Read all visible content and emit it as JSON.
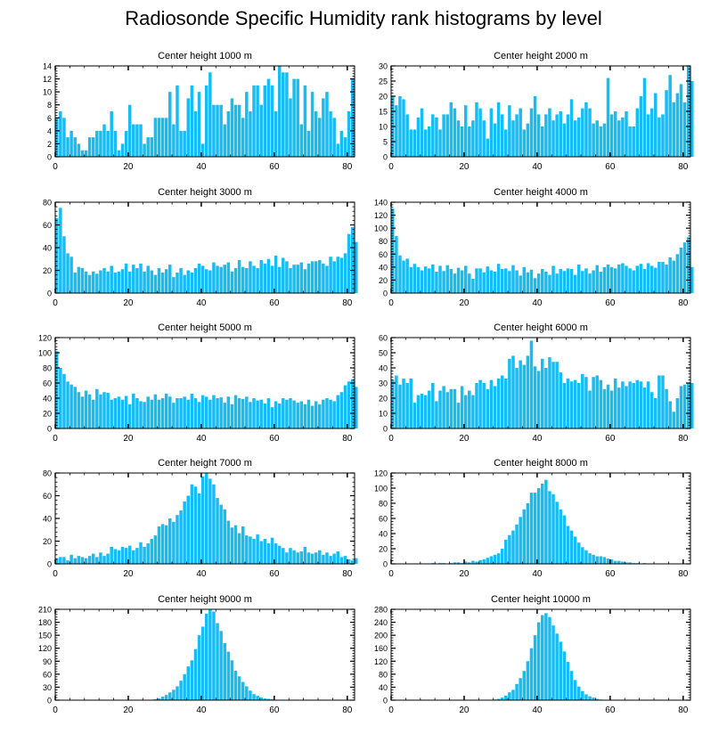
{
  "title": "Radiosonde Specific Humidity rank histograms by level",
  "colors": {
    "bar": "#17bdf2",
    "axis": "#000000",
    "background": "#ffffff"
  },
  "chart_data": [
    {
      "type": "bar",
      "title": "Center height 1000 m",
      "x_ticks": [
        0,
        20,
        40,
        60,
        80
      ],
      "ylim": [
        0,
        14
      ],
      "y_ticks": [
        0,
        2,
        4,
        6,
        8,
        10,
        12,
        14
      ],
      "values": [
        6,
        7,
        6,
        3,
        4,
        3,
        2,
        1,
        1,
        3,
        3,
        4,
        4,
        5,
        4,
        7,
        4,
        1,
        2,
        4,
        8,
        5,
        5,
        5,
        2,
        3,
        3,
        6,
        6,
        6,
        6,
        10,
        5,
        11,
        4,
        4,
        9,
        11,
        7,
        10,
        2,
        11,
        13,
        8,
        8,
        8,
        5,
        7,
        9,
        8,
        8,
        6,
        10,
        7,
        11,
        11,
        8,
        11,
        12,
        11,
        7,
        14,
        13,
        13,
        9,
        12,
        12,
        5,
        11,
        4,
        10,
        7,
        6,
        9,
        10,
        7,
        6,
        2,
        4,
        3,
        7,
        12
      ]
    },
    {
      "type": "bar",
      "title": "Center height 2000 m",
      "x_ticks": [
        0,
        20,
        40,
        60,
        80
      ],
      "ylim": [
        0,
        30
      ],
      "y_ticks": [
        0,
        5,
        10,
        15,
        20,
        25,
        30
      ],
      "values": [
        20,
        17,
        20,
        19,
        14,
        9,
        9,
        13,
        16,
        9,
        10,
        14,
        13,
        9,
        14,
        14,
        18,
        16,
        12,
        10,
        17,
        10,
        12,
        18,
        16,
        12,
        6,
        16,
        11,
        18,
        14,
        9,
        17,
        12,
        14,
        16,
        9,
        11,
        16,
        20,
        14,
        10,
        14,
        16,
        12,
        14,
        15,
        11,
        14,
        19,
        12,
        13,
        16,
        18,
        16,
        11,
        12,
        10,
        11,
        26,
        14,
        15,
        12,
        13,
        15,
        10,
        10,
        16,
        20,
        26,
        14,
        16,
        21,
        13,
        14,
        22,
        27,
        18,
        21,
        24,
        18,
        30,
        25
      ]
    },
    {
      "type": "bar",
      "title": "Center height 3000 m",
      "x_ticks": [
        0,
        20,
        40,
        60,
        80
      ],
      "ylim": [
        0,
        80
      ],
      "y_ticks": [
        0,
        20,
        40,
        60,
        80
      ],
      "values": [
        66,
        75,
        50,
        35,
        32,
        18,
        23,
        22,
        19,
        16,
        19,
        17,
        20,
        22,
        19,
        24,
        18,
        19,
        21,
        26,
        19,
        25,
        22,
        26,
        19,
        24,
        20,
        16,
        22,
        18,
        21,
        25,
        14,
        18,
        22,
        16,
        20,
        18,
        22,
        26,
        24,
        21,
        20,
        27,
        24,
        23,
        25,
        27,
        19,
        22,
        29,
        23,
        22,
        28,
        24,
        22,
        29,
        26,
        30,
        24,
        33,
        23,
        31,
        28,
        22,
        25,
        25,
        27,
        21,
        26,
        28,
        28,
        29,
        26,
        24,
        32,
        28,
        32,
        31,
        35,
        52,
        58,
        45
      ]
    },
    {
      "type": "bar",
      "title": "Center height 4000 m",
      "x_ticks": [
        0,
        20,
        40,
        60,
        80
      ],
      "ylim": [
        0,
        140
      ],
      "y_ticks": [
        0,
        20,
        40,
        60,
        80,
        100,
        120,
        140
      ],
      "values": [
        130,
        88,
        58,
        50,
        53,
        40,
        45,
        40,
        35,
        41,
        38,
        44,
        33,
        42,
        34,
        43,
        37,
        30,
        39,
        35,
        42,
        30,
        22,
        38,
        38,
        32,
        41,
        35,
        33,
        45,
        37,
        38,
        34,
        43,
        35,
        27,
        40,
        32,
        36,
        23,
        30,
        37,
        33,
        28,
        42,
        30,
        37,
        34,
        38,
        37,
        28,
        44,
        34,
        38,
        30,
        35,
        43,
        33,
        40,
        44,
        40,
        38,
        44,
        46,
        42,
        38,
        35,
        42,
        45,
        37,
        46,
        42,
        39,
        48,
        48,
        44,
        55,
        50,
        60,
        70,
        78,
        86,
        40
      ]
    },
    {
      "type": "bar",
      "title": "Center height 5000 m",
      "x_ticks": [
        0,
        20,
        40,
        60,
        80
      ],
      "ylim": [
        0,
        120
      ],
      "y_ticks": [
        0,
        20,
        40,
        60,
        80,
        100,
        120
      ],
      "values": [
        102,
        80,
        72,
        62,
        58,
        55,
        48,
        42,
        50,
        45,
        38,
        52,
        45,
        48,
        47,
        38,
        40,
        42,
        38,
        43,
        32,
        46,
        40,
        36,
        35,
        42,
        38,
        45,
        38,
        40,
        46,
        42,
        34,
        40,
        40,
        42,
        38,
        46,
        40,
        35,
        44,
        42,
        38,
        44,
        40,
        41,
        34,
        42,
        32,
        44,
        40,
        39,
        42,
        35,
        40,
        37,
        38,
        33,
        40,
        28,
        36,
        33,
        40,
        38,
        40,
        37,
        34,
        36,
        32,
        38,
        30,
        36,
        32,
        38,
        40,
        38,
        36,
        44,
        48,
        57,
        62,
        65,
        55
      ]
    },
    {
      "type": "bar",
      "title": "Center height 6000 m",
      "x_ticks": [
        0,
        20,
        40,
        60,
        80
      ],
      "ylim": [
        0,
        60
      ],
      "y_ticks": [
        0,
        10,
        20,
        30,
        40,
        50,
        60
      ],
      "values": [
        32,
        35,
        29,
        33,
        30,
        33,
        17,
        22,
        23,
        22,
        25,
        30,
        18,
        25,
        28,
        24,
        26,
        26,
        17,
        28,
        22,
        25,
        22,
        30,
        32,
        30,
        26,
        32,
        28,
        33,
        35,
        33,
        46,
        48,
        40,
        45,
        42,
        48,
        58,
        41,
        38,
        46,
        40,
        47,
        44,
        44,
        37,
        30,
        33,
        31,
        32,
        30,
        36,
        34,
        25,
        34,
        35,
        32,
        26,
        29,
        25,
        33,
        27,
        31,
        28,
        31,
        30,
        32,
        31,
        27,
        31,
        24,
        20,
        35,
        35,
        26,
        18,
        11,
        20,
        28,
        29,
        30,
        30
      ]
    },
    {
      "type": "bar",
      "title": "Center height 7000 m",
      "x_ticks": [
        0,
        20,
        40,
        60,
        80
      ],
      "ylim": [
        0,
        80
      ],
      "y_ticks": [
        0,
        20,
        40,
        60,
        80
      ],
      "values": [
        5,
        6,
        6,
        3,
        8,
        5,
        7,
        6,
        5,
        7,
        9,
        6,
        10,
        7,
        9,
        15,
        13,
        12,
        15,
        14,
        16,
        12,
        14,
        19,
        15,
        18,
        22,
        25,
        33,
        35,
        34,
        40,
        37,
        43,
        47,
        55,
        60,
        70,
        68,
        62,
        77,
        80,
        75,
        70,
        58,
        52,
        48,
        38,
        32,
        34,
        27,
        33,
        25,
        24,
        22,
        26,
        20,
        22,
        18,
        23,
        18,
        16,
        14,
        10,
        14,
        12,
        10,
        11,
        15,
        10,
        9,
        10,
        12,
        8,
        10,
        7,
        9,
        11,
        6,
        7,
        4,
        3,
        5
      ]
    },
    {
      "type": "bar",
      "title": "Center height 8000 m",
      "x_ticks": [
        0,
        20,
        40,
        60,
        80
      ],
      "ylim": [
        0,
        120
      ],
      "y_ticks": [
        0,
        20,
        40,
        60,
        80,
        100,
        120
      ],
      "values": [
        0,
        0,
        0,
        0,
        0,
        0,
        0,
        0,
        0,
        0,
        0,
        1,
        0,
        1,
        1,
        0,
        1,
        2,
        2,
        1,
        3,
        2,
        4,
        3,
        5,
        6,
        8,
        10,
        12,
        14,
        20,
        32,
        38,
        44,
        52,
        62,
        72,
        80,
        94,
        94,
        100,
        106,
        111,
        96,
        92,
        82,
        72,
        64,
        50,
        44,
        36,
        28,
        22,
        18,
        14,
        12,
        10,
        10,
        9,
        7,
        6,
        4,
        4,
        3,
        2,
        2,
        1,
        1,
        0,
        1,
        0,
        0,
        0,
        0,
        0,
        0,
        0,
        0,
        0,
        0,
        0,
        0,
        0
      ]
    },
    {
      "type": "bar",
      "title": "Center height 9000 m",
      "x_ticks": [
        0,
        20,
        40,
        60,
        80
      ],
      "ylim": [
        0,
        210
      ],
      "y_ticks": [
        0,
        30,
        60,
        90,
        120,
        150,
        180,
        210
      ],
      "values": [
        0,
        0,
        0,
        0,
        0,
        0,
        0,
        0,
        0,
        0,
        0,
        0,
        0,
        0,
        0,
        0,
        0,
        0,
        0,
        0,
        0,
        0,
        0,
        0,
        0,
        1,
        1,
        2,
        4,
        8,
        12,
        18,
        24,
        32,
        45,
        60,
        78,
        92,
        118,
        150,
        170,
        200,
        212,
        205,
        178,
        160,
        132,
        112,
        92,
        68,
        55,
        42,
        32,
        22,
        14,
        10,
        6,
        4,
        3,
        2,
        1,
        1,
        0,
        0,
        0,
        0,
        0,
        0,
        0,
        0,
        0,
        0,
        0,
        0,
        0,
        0,
        0,
        0,
        0,
        0,
        0,
        0,
        0
      ]
    },
    {
      "type": "bar",
      "title": "Center height 10000 m",
      "x_ticks": [
        0,
        20,
        40,
        60,
        80
      ],
      "ylim": [
        0,
        280
      ],
      "y_ticks": [
        0,
        40,
        80,
        120,
        160,
        200,
        240,
        280
      ],
      "values": [
        0,
        0,
        0,
        0,
        0,
        0,
        0,
        0,
        0,
        0,
        0,
        0,
        0,
        0,
        0,
        0,
        0,
        0,
        0,
        0,
        0,
        0,
        0,
        0,
        0,
        0,
        0,
        1,
        2,
        4,
        8,
        14,
        24,
        32,
        50,
        68,
        90,
        120,
        160,
        200,
        240,
        262,
        268,
        256,
        230,
        205,
        180,
        150,
        118,
        90,
        62,
        42,
        28,
        18,
        12,
        8,
        4,
        2,
        1,
        1,
        0,
        0,
        0,
        0,
        0,
        0,
        0,
        0,
        0,
        0,
        0,
        0,
        0,
        0,
        0,
        0,
        0,
        0,
        0,
        0,
        0,
        0,
        0
      ]
    }
  ]
}
